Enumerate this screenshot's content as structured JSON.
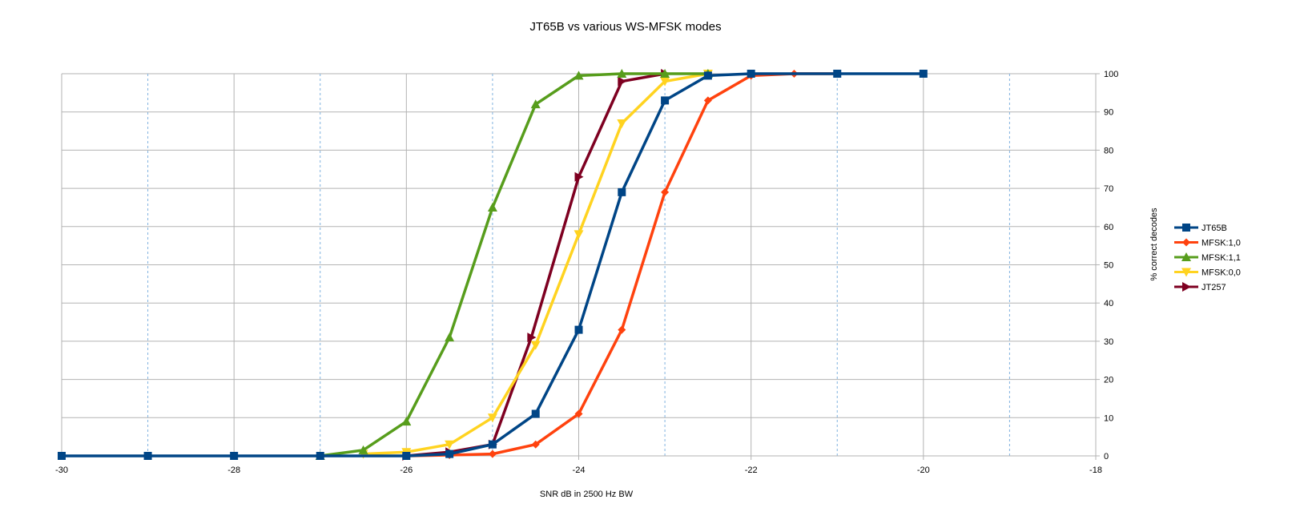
{
  "chart_data": {
    "type": "line",
    "title": "JT65B vs various WS-MFSK modes",
    "xlabel": "SNR dB in 2500 Hz BW",
    "ylabel": "% correct decodes",
    "xlim": [
      -30,
      -18
    ],
    "ylim": [
      0,
      100
    ],
    "x_ticks": [
      -30,
      -28,
      -26,
      -24,
      -22,
      -20,
      -18
    ],
    "x_minor_grid": [
      -29,
      -27,
      -25,
      -23,
      -21,
      -19
    ],
    "y_ticks": [
      0,
      10,
      20,
      30,
      40,
      50,
      60,
      70,
      80,
      90,
      100
    ],
    "y_axis_side": "right",
    "grid": true,
    "legend_position": "right",
    "series": [
      {
        "name": "JT65B",
        "color": "#004586",
        "marker": "square",
        "x": [
          -30,
          -29,
          -28,
          -27,
          -26,
          -25.5,
          -25,
          -24.5,
          -24,
          -23.5,
          -23,
          -22.5,
          -22,
          -21,
          -20
        ],
        "y": [
          0,
          0,
          0,
          0,
          0,
          0.5,
          3,
          11,
          33,
          69,
          93,
          99.5,
          100,
          100,
          100
        ]
      },
      {
        "name": "MFSK:1,0",
        "color": "#ff420e",
        "marker": "diamond",
        "x": [
          -26,
          -25.5,
          -25,
          -24.5,
          -24,
          -23.5,
          -23,
          -22.5,
          -22,
          -21.5,
          -21
        ],
        "y": [
          0,
          0.2,
          0.5,
          3,
          11,
          33,
          69,
          93,
          99.5,
          100,
          100
        ]
      },
      {
        "name": "MFSK:1,1",
        "color": "#579d1c",
        "marker": "triangle-up",
        "x": [
          -27,
          -26.5,
          -26,
          -25.5,
          -25,
          -24.5,
          -24,
          -23.5,
          -23,
          -22.5
        ],
        "y": [
          0,
          1.5,
          9,
          31,
          65,
          92,
          99.5,
          100,
          100,
          100
        ]
      },
      {
        "name": "MFSK:0,0",
        "color": "#ffd320",
        "marker": "triangle-down",
        "x": [
          -26.5,
          -26,
          -25.5,
          -25,
          -24.5,
          -24,
          -23.5,
          -23,
          -22.5
        ],
        "y": [
          0.5,
          1,
          3,
          10,
          29,
          58,
          87,
          98,
          100
        ]
      },
      {
        "name": "JT257",
        "color": "#7e0021",
        "marker": "triangle-right",
        "x": [
          -26,
          -25.5,
          -25,
          -24.55,
          -24,
          -23.5,
          -23
        ],
        "y": [
          0,
          1,
          3,
          31,
          73,
          98,
          100
        ]
      }
    ]
  }
}
